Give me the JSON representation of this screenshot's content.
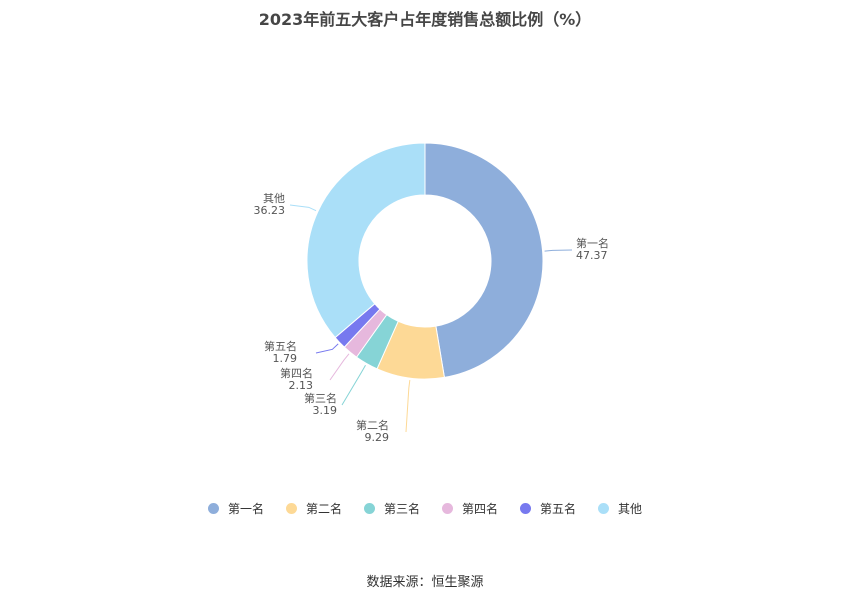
{
  "chart_data": {
    "type": "pie",
    "style": "donut",
    "title": "2023年前五大客户占年度销售总额比例（%）",
    "categories": [
      "第一名",
      "第二名",
      "第三名",
      "第四名",
      "第五名",
      "其他"
    ],
    "values": [
      47.37,
      9.29,
      3.19,
      2.13,
      1.79,
      36.23
    ],
    "colors": [
      "#8eaedb",
      "#fdd996",
      "#86d4d6",
      "#e6b8dd",
      "#7779ef",
      "#aadff8"
    ],
    "legend_position": "bottom"
  },
  "footer": {
    "source": "数据来源：恒生聚源"
  }
}
